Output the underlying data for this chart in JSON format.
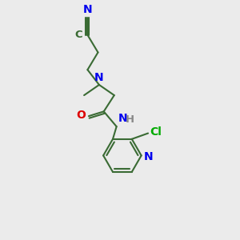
{
  "bg_color": "#ebebeb",
  "bond_color": "#3a6b34",
  "N_color": "#0000ee",
  "O_color": "#dd0000",
  "Cl_color": "#00aa00",
  "H_color": "#888888",
  "line_width": 1.5,
  "font_size": 9.5,
  "figsize": [
    3.0,
    3.0
  ],
  "dpi": 100,
  "xlim": [
    0,
    10
  ],
  "ylim": [
    0,
    10
  ]
}
